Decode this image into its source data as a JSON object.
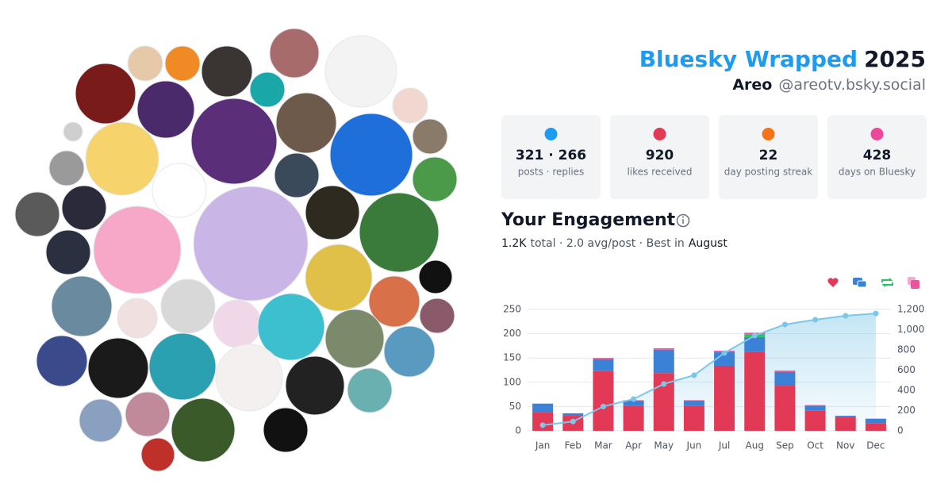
{
  "header": {
    "title": "Bluesky Wrapped",
    "year": "2025",
    "name": "Areo",
    "handle": "@areotv.bsky.social"
  },
  "stats": [
    {
      "value": "321 · 266",
      "label": "posts · replies"
    },
    {
      "value": "920",
      "label": "likes received"
    },
    {
      "value": "22",
      "label": "day posting streak"
    },
    {
      "value": "428",
      "label": "days on Bluesky"
    }
  ],
  "engagement": {
    "title": "Your Engagement",
    "total": "1.2K",
    "summary": "total · 2.0 avg/post · Best in",
    "best": "August"
  },
  "chart_data": {
    "type": "bar",
    "stacked": true,
    "categories": [
      "Jan",
      "Feb",
      "Mar",
      "Apr",
      "May",
      "Jun",
      "Jul",
      "Aug",
      "Sep",
      "Oct",
      "Nov",
      "Dec"
    ],
    "series": [
      {
        "color": "#e23a56",
        "values": [
          39,
          31,
          123,
          52,
          119,
          52,
          134,
          163,
          93,
          42,
          29,
          16
        ]
      },
      {
        "color": "#3b82d6",
        "values": [
          17,
          5,
          24,
          10,
          48,
          10,
          28,
          30,
          28,
          10,
          2,
          9
        ]
      },
      {
        "color": "#22c55e",
        "values": [
          0,
          0,
          0,
          0,
          0,
          0,
          0,
          6,
          0,
          0,
          0,
          0
        ]
      },
      {
        "color": "#e8569e",
        "values": [
          0,
          0,
          3,
          1,
          3,
          1,
          3,
          3,
          3,
          1,
          0,
          0
        ]
      },
      {
        "type": "area",
        "axis": "y2",
        "color": "#7cc6ea",
        "values": [
          56,
          92,
          240,
          314,
          463,
          549,
          769,
          941,
          1051,
          1098,
          1137,
          1160
        ]
      }
    ],
    "ylim": [
      0,
      250
    ],
    "yticks": [
      0,
      50,
      100,
      150,
      200,
      250
    ],
    "y2lim": [
      0,
      1200
    ],
    "y2ticks": [
      0,
      200,
      400,
      600,
      800,
      {
        "value": 1000,
        "label": "1,000"
      },
      {
        "value": 1200,
        "label": "1,200"
      }
    ],
    "grid": true
  }
}
